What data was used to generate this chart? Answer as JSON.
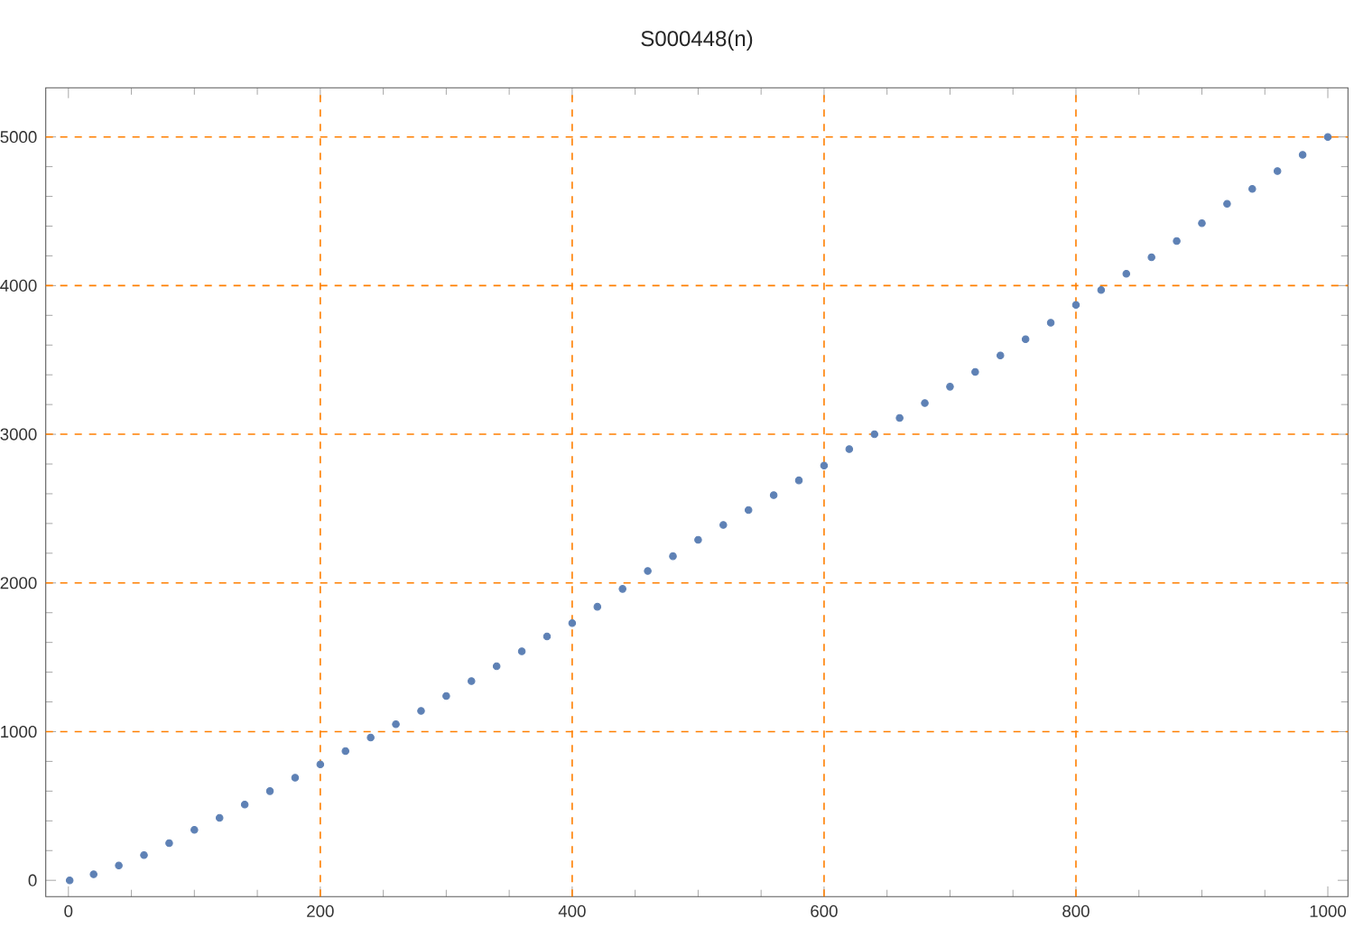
{
  "chart_data": {
    "type": "scatter",
    "title": "S000448(n)",
    "x": [
      1,
      20,
      40,
      60,
      80,
      100,
      120,
      140,
      160,
      180,
      200,
      220,
      240,
      260,
      280,
      300,
      320,
      340,
      360,
      380,
      400,
      420,
      440,
      460,
      480,
      500,
      520,
      540,
      560,
      580,
      600,
      620,
      640,
      660,
      680,
      700,
      720,
      740,
      760,
      780,
      800,
      820,
      840,
      860,
      880,
      900,
      920,
      940,
      960,
      980,
      1000
    ],
    "values": [
      0,
      40,
      100,
      170,
      250,
      340,
      420,
      510,
      600,
      690,
      780,
      870,
      960,
      1050,
      1140,
      1240,
      1340,
      1440,
      1540,
      1640,
      1730,
      1840,
      1960,
      2080,
      2180,
      2290,
      2390,
      2490,
      2590,
      2690,
      2790,
      2900,
      3000,
      3110,
      3210,
      3320,
      3420,
      3530,
      3640,
      3750,
      3870,
      3970,
      4080,
      4190,
      4300,
      4420,
      4550,
      4650,
      4770,
      4880,
      5000
    ],
    "color": "#5e81b5",
    "marker": "circle",
    "xlim": [
      -18,
      1016
    ],
    "ylim": [
      -110,
      5330
    ],
    "xticks": [
      0,
      200,
      400,
      600,
      800,
      1000
    ],
    "yticks": [
      0,
      1000,
      2000,
      3000,
      4000,
      5000
    ],
    "grid": true
  }
}
